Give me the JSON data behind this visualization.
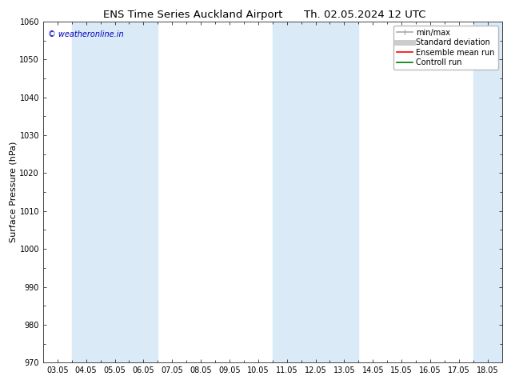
{
  "title_left": "ENS Time Series Auckland Airport",
  "title_right": "Th. 02.05.2024 12 UTC",
  "ylabel": "Surface Pressure (hPa)",
  "ylim": [
    970,
    1060
  ],
  "yticks": [
    970,
    980,
    990,
    1000,
    1010,
    1020,
    1030,
    1040,
    1050,
    1060
  ],
  "xtick_labels": [
    "03.05",
    "04.05",
    "05.05",
    "06.05",
    "07.05",
    "08.05",
    "09.05",
    "10.05",
    "11.05",
    "12.05",
    "13.05",
    "14.05",
    "15.05",
    "16.05",
    "17.05",
    "18.05"
  ],
  "background_color": "#ffffff",
  "plot_bg_color": "#ffffff",
  "shaded_bands": [
    {
      "xstart": 1,
      "xend": 3,
      "color": "#daeaf7"
    },
    {
      "xstart": 8,
      "xend": 10,
      "color": "#daeaf7"
    },
    {
      "xstart": 15,
      "xend": 15.5,
      "color": "#daeaf7"
    }
  ],
  "watermark": "© weatheronline.in",
  "watermark_color": "#0000bb",
  "legend_items": [
    {
      "label": "min/max",
      "color": "#aaaaaa",
      "lw": 1.2
    },
    {
      "label": "Standard deviation",
      "color": "#cccccc",
      "lw": 5
    },
    {
      "label": "Ensemble mean run",
      "color": "#ff0000",
      "lw": 1.2
    },
    {
      "label": "Controll run",
      "color": "#007700",
      "lw": 1.2
    }
  ],
  "title_fontsize": 9.5,
  "ylabel_fontsize": 8,
  "tick_fontsize": 7,
  "watermark_fontsize": 7,
  "legend_fontsize": 7
}
